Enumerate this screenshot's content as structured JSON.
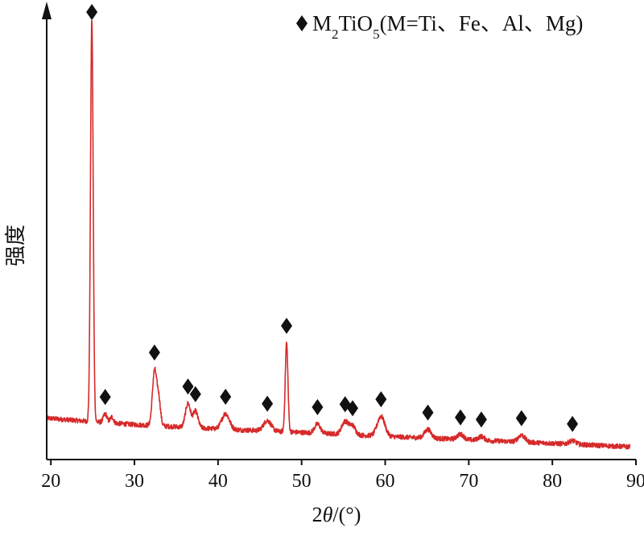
{
  "chart_data": {
    "type": "line",
    "xlabel_parts": [
      "2",
      "θ",
      "/(°)"
    ],
    "ylabel": "强度",
    "xlim": [
      19.5,
      90
    ],
    "x_ticks": [
      20,
      30,
      40,
      50,
      60,
      70,
      80,
      90
    ],
    "y_ticks_shown": false,
    "line_color": "#d62a2a",
    "marker_color": "#111111",
    "legend": {
      "placement": "top-right",
      "marker": "diamond",
      "parts": [
        {
          "text": "M",
          "sub": false
        },
        {
          "text": "2",
          "sub": true
        },
        {
          "text": "TiO",
          "sub": false
        },
        {
          "text": "5",
          "sub": true
        },
        {
          "text": "(M=Ti、Fe、Al、Mg)",
          "sub": false
        }
      ]
    },
    "intensity_scale": "relative (0 = baseline, 100 = strongest peak)",
    "background": [
      [
        19.5,
        7.5
      ],
      [
        24,
        6.8
      ],
      [
        30,
        6.0
      ],
      [
        40,
        5.0
      ],
      [
        50,
        4.2
      ],
      [
        60,
        3.3
      ],
      [
        70,
        2.5
      ],
      [
        80,
        1.7
      ],
      [
        89,
        0.9
      ]
    ],
    "noise_amplitude": 0.55,
    "peaks": [
      {
        "x": 24.9,
        "height": 92.5,
        "width": 0.16,
        "marked": true
      },
      {
        "x": 26.5,
        "height": 2.0,
        "width": 0.22,
        "marked": true
      },
      {
        "x": 27.3,
        "height": 1.4,
        "width": 0.2,
        "marked": false
      },
      {
        "x": 32.4,
        "height": 12.5,
        "width": 0.25,
        "marked": true
      },
      {
        "x": 32.9,
        "height": 6.0,
        "width": 0.22,
        "marked": false
      },
      {
        "x": 36.4,
        "height": 5.5,
        "width": 0.3,
        "marked": true
      },
      {
        "x": 37.3,
        "height": 3.8,
        "width": 0.3,
        "marked": true
      },
      {
        "x": 40.9,
        "height": 3.6,
        "width": 0.45,
        "marked": true
      },
      {
        "x": 45.9,
        "height": 2.4,
        "width": 0.45,
        "marked": true
      },
      {
        "x": 48.2,
        "height": 20.5,
        "width": 0.16,
        "marked": true
      },
      {
        "x": 51.9,
        "height": 2.1,
        "width": 0.35,
        "marked": true
      },
      {
        "x": 55.2,
        "height": 3.0,
        "width": 0.4,
        "marked": true
      },
      {
        "x": 56.1,
        "height": 2.0,
        "width": 0.35,
        "marked": true
      },
      {
        "x": 59.5,
        "height": 4.6,
        "width": 0.45,
        "marked": true
      },
      {
        "x": 65.1,
        "height": 2.0,
        "width": 0.4,
        "marked": true
      },
      {
        "x": 69.0,
        "height": 1.2,
        "width": 0.4,
        "marked": true
      },
      {
        "x": 71.5,
        "height": 0.9,
        "width": 0.35,
        "marked": true
      },
      {
        "x": 76.3,
        "height": 1.6,
        "width": 0.4,
        "marked": true
      },
      {
        "x": 82.4,
        "height": 0.8,
        "width": 0.4,
        "marked": true
      }
    ]
  }
}
